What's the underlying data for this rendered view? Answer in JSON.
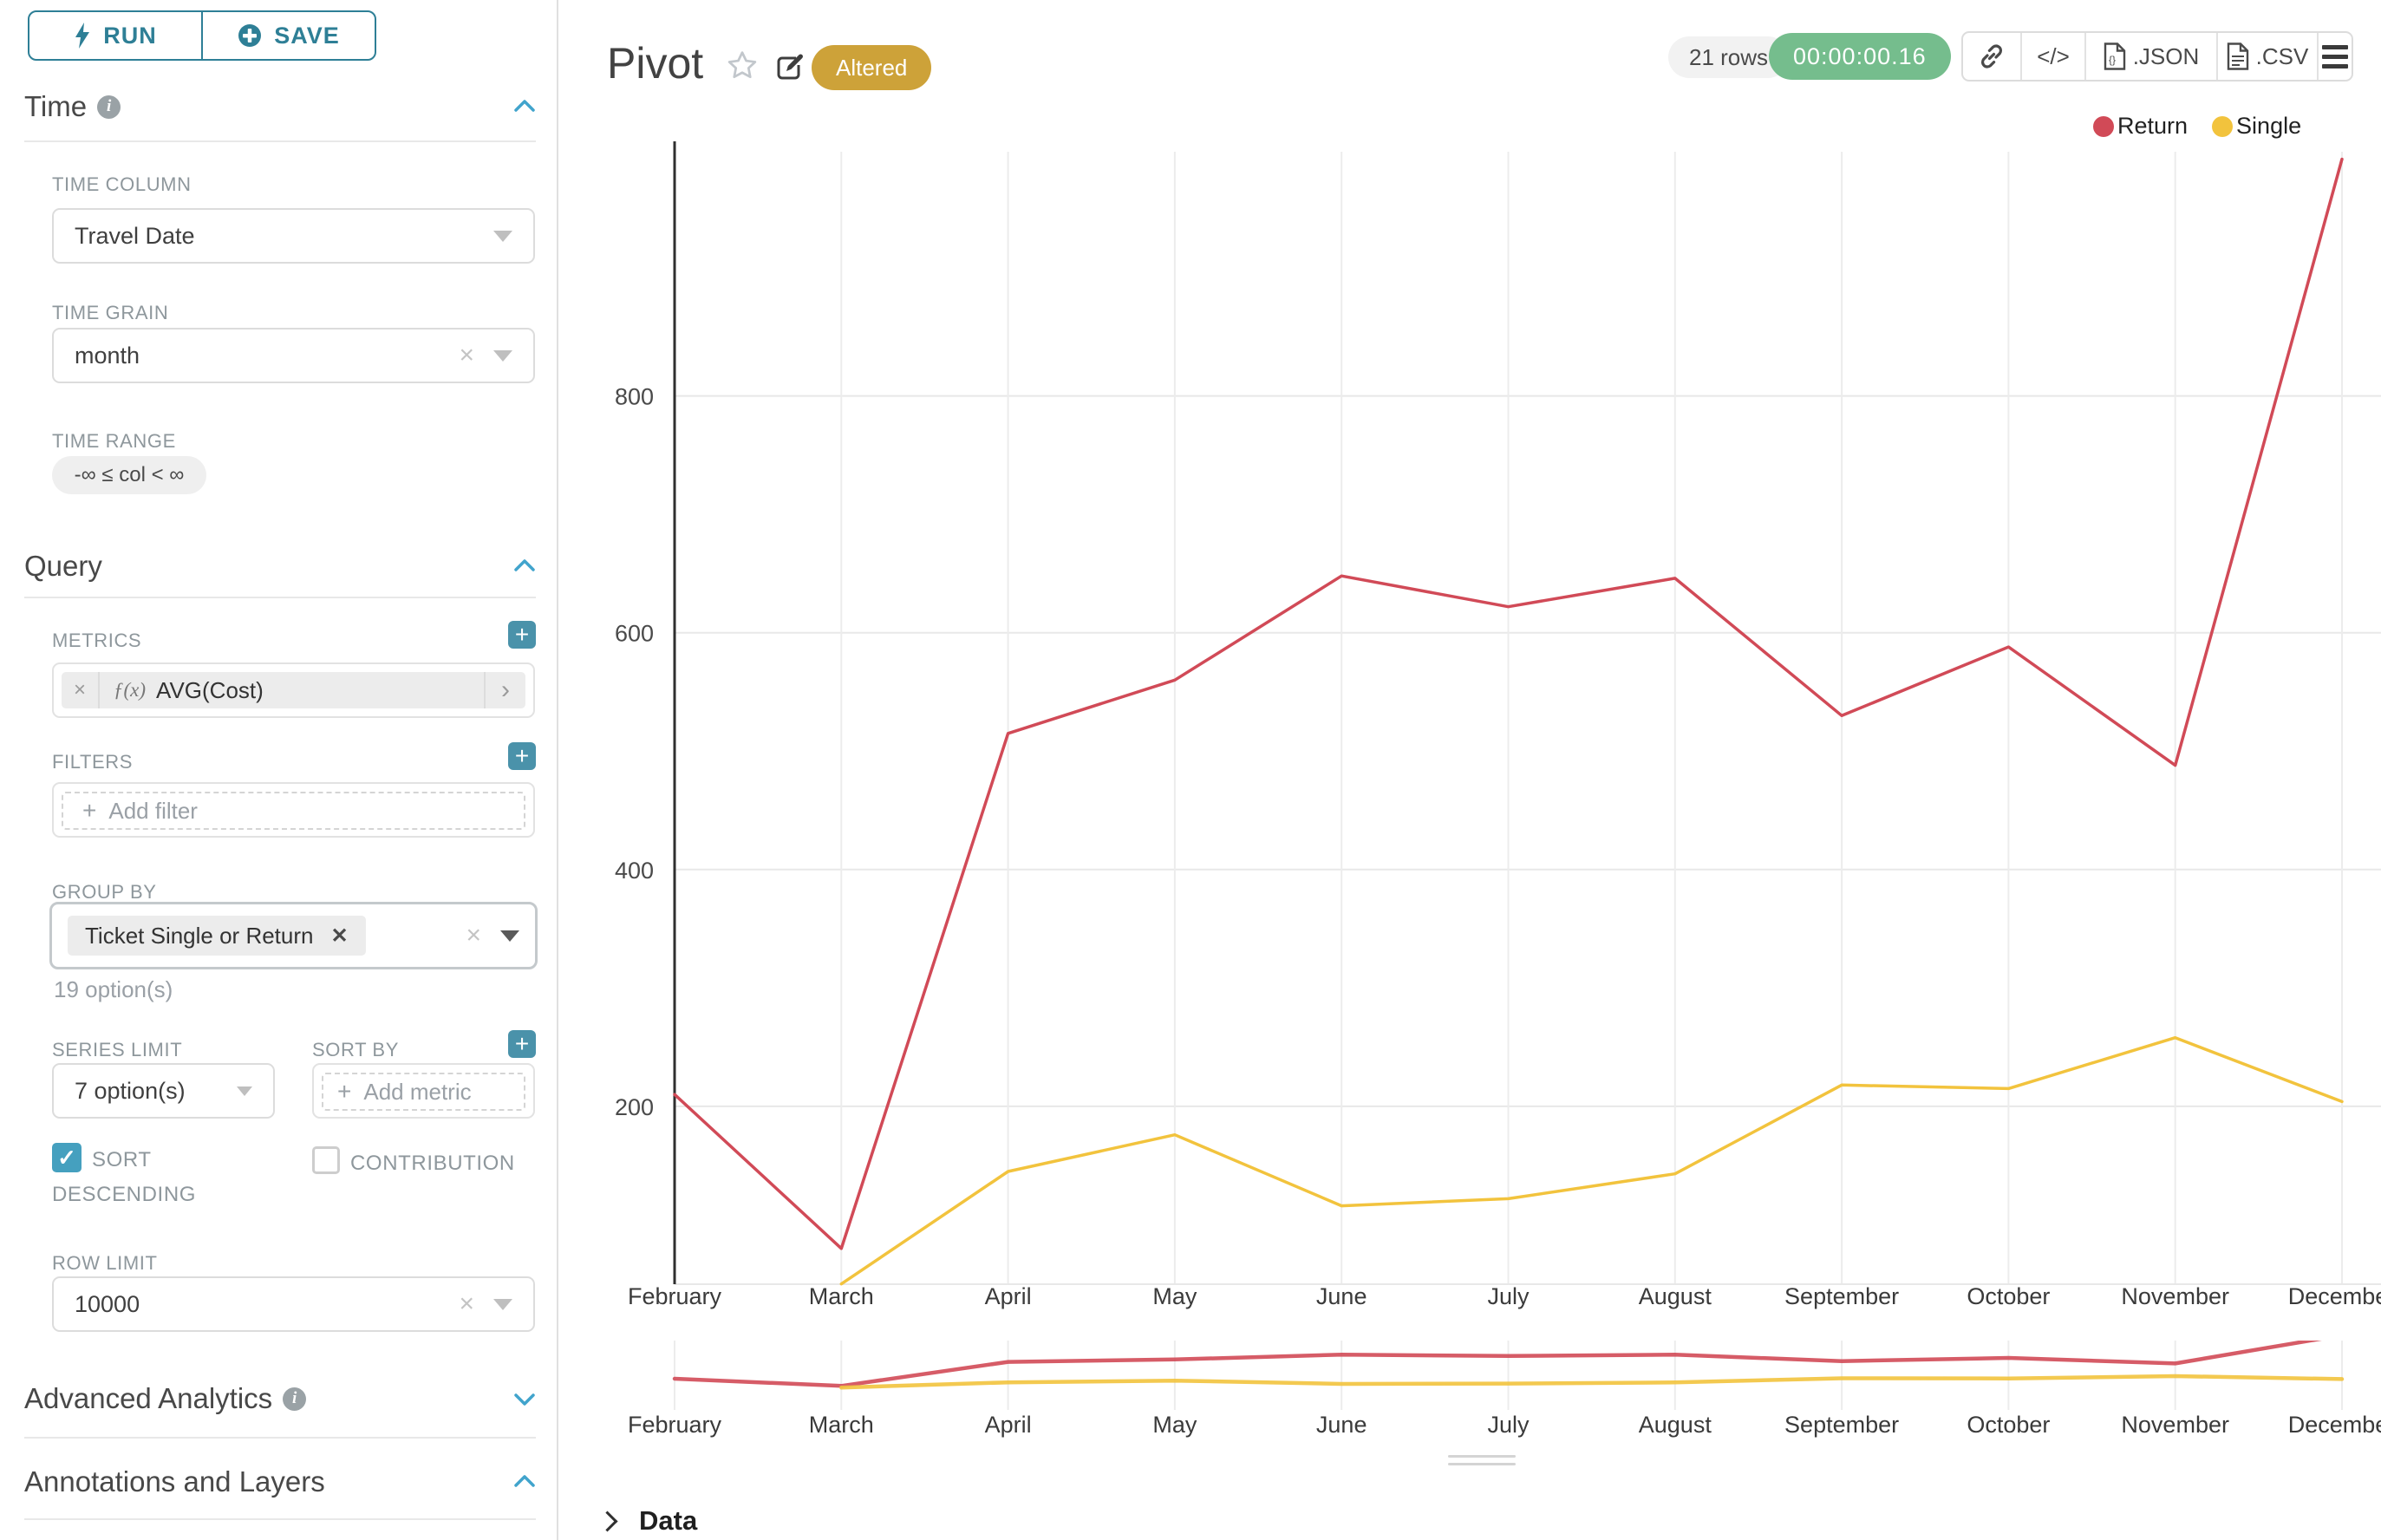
{
  "colors": {
    "accent_teal": "#2e7f96",
    "plus_button": "#4a92aa",
    "checkbox_checked": "#45a0bf",
    "chevron_blue": "#41a4cc",
    "altered_badge": "#cda239",
    "timer_badge": "#75bd8d",
    "rows_badge_bg": "#f2f2f2",
    "series_return": "#d14a57",
    "series_single": "#f2c33d",
    "gridline": "#ececec"
  },
  "icons": {
    "run": "bolt",
    "save": "circle-plus",
    "info": "info-circle",
    "section_expanded": "chevron-up",
    "section_collapsed": "chevron-down",
    "favorite": "star-outline",
    "edit": "pencil-square",
    "share": "link",
    "embed": "code",
    "menu": "hamburger",
    "data_expand": "chevron-right",
    "metric": "fx",
    "drag": "handle-bars"
  },
  "toolbar": {
    "run_label": "RUN",
    "save_label": "SAVE"
  },
  "sections": {
    "time": {
      "title": "Time",
      "time_column_label": "TIME COLUMN",
      "time_column_value": "Travel Date",
      "time_grain_label": "TIME GRAIN",
      "time_grain_value": "month",
      "time_range_label": "TIME RANGE",
      "time_range_value": "-∞ ≤ col < ∞"
    },
    "query": {
      "title": "Query",
      "metrics_label": "METRICS",
      "metric_fx": "ƒ(x)",
      "metric_value": "AVG(Cost)",
      "filters_label": "FILTERS",
      "add_filter_placeholder": "Add filter",
      "group_by_label": "GROUP BY",
      "group_by_value": "Ticket Single or Return",
      "group_by_hint": "19 option(s)",
      "series_limit_label": "SERIES LIMIT",
      "series_limit_value": "7 option(s)",
      "sort_by_label": "SORT BY",
      "add_metric_placeholder": "Add metric",
      "sort_descending_line1": "SORT",
      "sort_descending_line2": "DESCENDING",
      "contribution_label": "CONTRIBUTION",
      "row_limit_label": "ROW LIMIT",
      "row_limit_value": "10000"
    },
    "advanced": {
      "title": "Advanced Analytics"
    },
    "annotations": {
      "title": "Annotations and Layers"
    }
  },
  "header": {
    "title": "Pivot",
    "altered_badge": "Altered",
    "row_count": "21 rows",
    "timer": "00:00:00.16",
    "embed_label": "</>",
    "json_label": ".JSON",
    "csv_label": ".CSV"
  },
  "data_panel": {
    "title": "Data"
  },
  "chart_data": {
    "type": "line",
    "categories": [
      "February",
      "March",
      "April",
      "May",
      "June",
      "July",
      "August",
      "September",
      "October",
      "November",
      "December"
    ],
    "series": [
      {
        "name": "Return",
        "color": "#d14a57",
        "values": [
          210,
          80,
          515,
          560,
          648,
          622,
          646,
          530,
          588,
          488,
          1000
        ]
      },
      {
        "name": "Single",
        "color": "#f2c33d",
        "values": [
          null,
          50,
          145,
          176,
          116,
          122,
          143,
          218,
          215,
          258,
          204
        ]
      }
    ],
    "title": "Pivot",
    "xlabel": "",
    "ylabel": "",
    "yticks": [
      200,
      400,
      600,
      800
    ],
    "ylim": [
      48,
      1005
    ],
    "grid": true,
    "legend_position": "top-right",
    "has_zoom_preview_strip": true
  }
}
